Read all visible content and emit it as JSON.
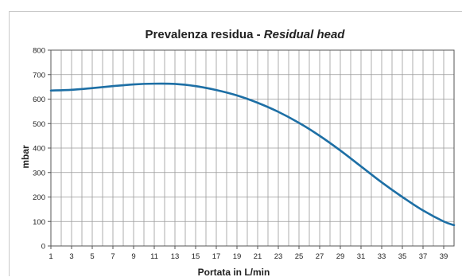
{
  "chart_data": {
    "type": "line",
    "title": "Prevalenza residua - ",
    "title_italic": "Residual head",
    "xlabel": "Portata in L/min",
    "ylabel": "mbar",
    "xlim": [
      1,
      40
    ],
    "ylim": [
      0,
      800
    ],
    "x_ticks": [
      1,
      3,
      5,
      7,
      9,
      11,
      13,
      15,
      17,
      19,
      21,
      23,
      25,
      27,
      29,
      31,
      33,
      35,
      37,
      39
    ],
    "y_ticks": [
      0,
      100,
      200,
      300,
      400,
      500,
      600,
      700,
      800
    ],
    "grid": true,
    "line_color": "#1d6fa5",
    "series": [
      {
        "x": [
          1,
          3,
          5,
          7,
          9,
          11,
          13,
          15,
          17,
          19,
          21,
          23,
          25,
          27,
          29,
          31,
          33,
          35,
          37,
          39,
          40
        ],
        "values": [
          635,
          638,
          645,
          653,
          660,
          663,
          662,
          653,
          637,
          615,
          585,
          548,
          503,
          450,
          390,
          325,
          260,
          200,
          145,
          100,
          85
        ]
      }
    ]
  }
}
